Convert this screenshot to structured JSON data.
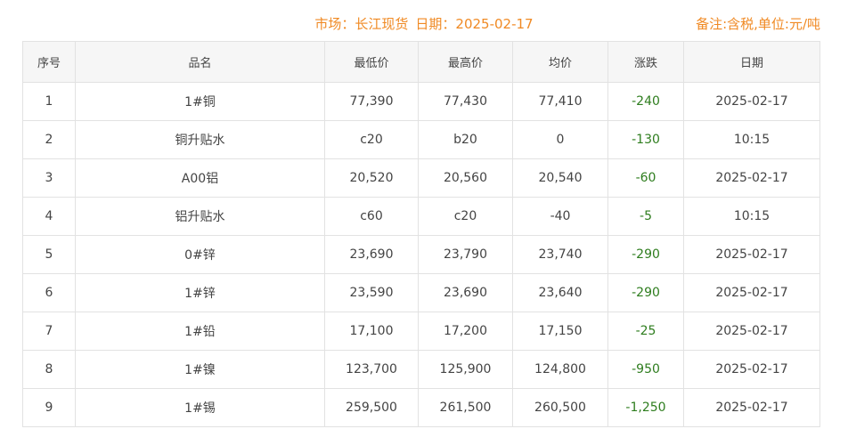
{
  "header": {
    "market": "市场：长江现货",
    "date": "日期：2025-02-17",
    "note": "备注:含税,单位:元/吨"
  },
  "columns": [
    "序号",
    "品名",
    "最低价",
    "最高价",
    "均价",
    "涨跌",
    "日期"
  ],
  "rows": [
    [
      "1",
      "1#铜",
      "77,390",
      "77,430",
      "77,410",
      "-240",
      "2025-02-17"
    ],
    [
      "2",
      "铜升贴水",
      "c20",
      "b20",
      "0",
      "-130",
      "10:15"
    ],
    [
      "3",
      "A00铝",
      "20,520",
      "20,560",
      "20,540",
      "-60",
      "2025-02-17"
    ],
    [
      "4",
      "铝升贴水",
      "c60",
      "c20",
      "-40",
      "-5",
      "10:15"
    ],
    [
      "5",
      "0#锌",
      "23,690",
      "23,790",
      "23,740",
      "-290",
      "2025-02-17"
    ],
    [
      "6",
      "1#锌",
      "23,590",
      "23,690",
      "23,640",
      "-290",
      "2025-02-17"
    ],
    [
      "7",
      "1#铅",
      "17,100",
      "17,200",
      "17,150",
      "-25",
      "2025-02-17"
    ],
    [
      "8",
      "1#镍",
      "123,700",
      "125,900",
      "124,800",
      "-950",
      "2025-02-17"
    ],
    [
      "9",
      "1#锡",
      "259,500",
      "261,500",
      "260,500",
      "-1,250",
      "2025-02-17"
    ]
  ],
  "colors": {
    "accent": "#f08a24",
    "change_down": "#2e7d1e"
  }
}
